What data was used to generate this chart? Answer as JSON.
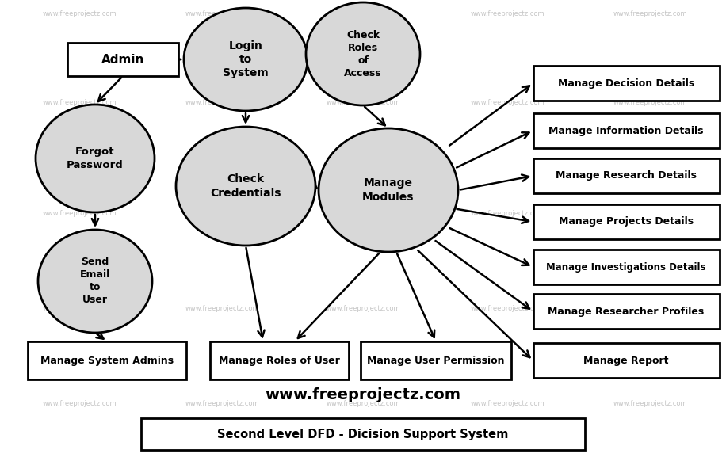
{
  "title": "Second Level DFD - Dicision Support System",
  "watermark": "www.freeprojectz.com",
  "background_color": "#ffffff",
  "ellipse_fill": "#d8d8d8",
  "ellipse_edge": "#000000",
  "rect_fill": "#ffffff",
  "rect_edge": "#000000",
  "nodes": {
    "admin": {
      "label": "Admin"
    },
    "login": {
      "label": "Login\nto\nSystem"
    },
    "check_roles": {
      "label": "Check\nRoles\nof\nAccess"
    },
    "forgot_pwd": {
      "label": "Forgot\nPassword"
    },
    "check_creds": {
      "label": "Check\nCredentials"
    },
    "manage_modules": {
      "label": "Manage\nModules"
    },
    "send_email": {
      "label": "Send\nEmail\nto\nUser"
    },
    "manage_sys_admins": {
      "label": "Manage System Admins"
    },
    "manage_roles": {
      "label": "Manage Roles of User"
    },
    "manage_user_perm": {
      "label": "Manage User Permission"
    },
    "manage_decision": {
      "label": "Manage Decision Details"
    },
    "manage_info": {
      "label": "Manage Information Details"
    },
    "manage_research": {
      "label": "Manage Research Details"
    },
    "manage_projects": {
      "label": "Manage Projects Details"
    },
    "manage_invest": {
      "label": "Manage Investigations Details"
    },
    "manage_researcher": {
      "label": "Manage Researcher Profiles"
    },
    "manage_report": {
      "label": "Manage Report"
    }
  }
}
